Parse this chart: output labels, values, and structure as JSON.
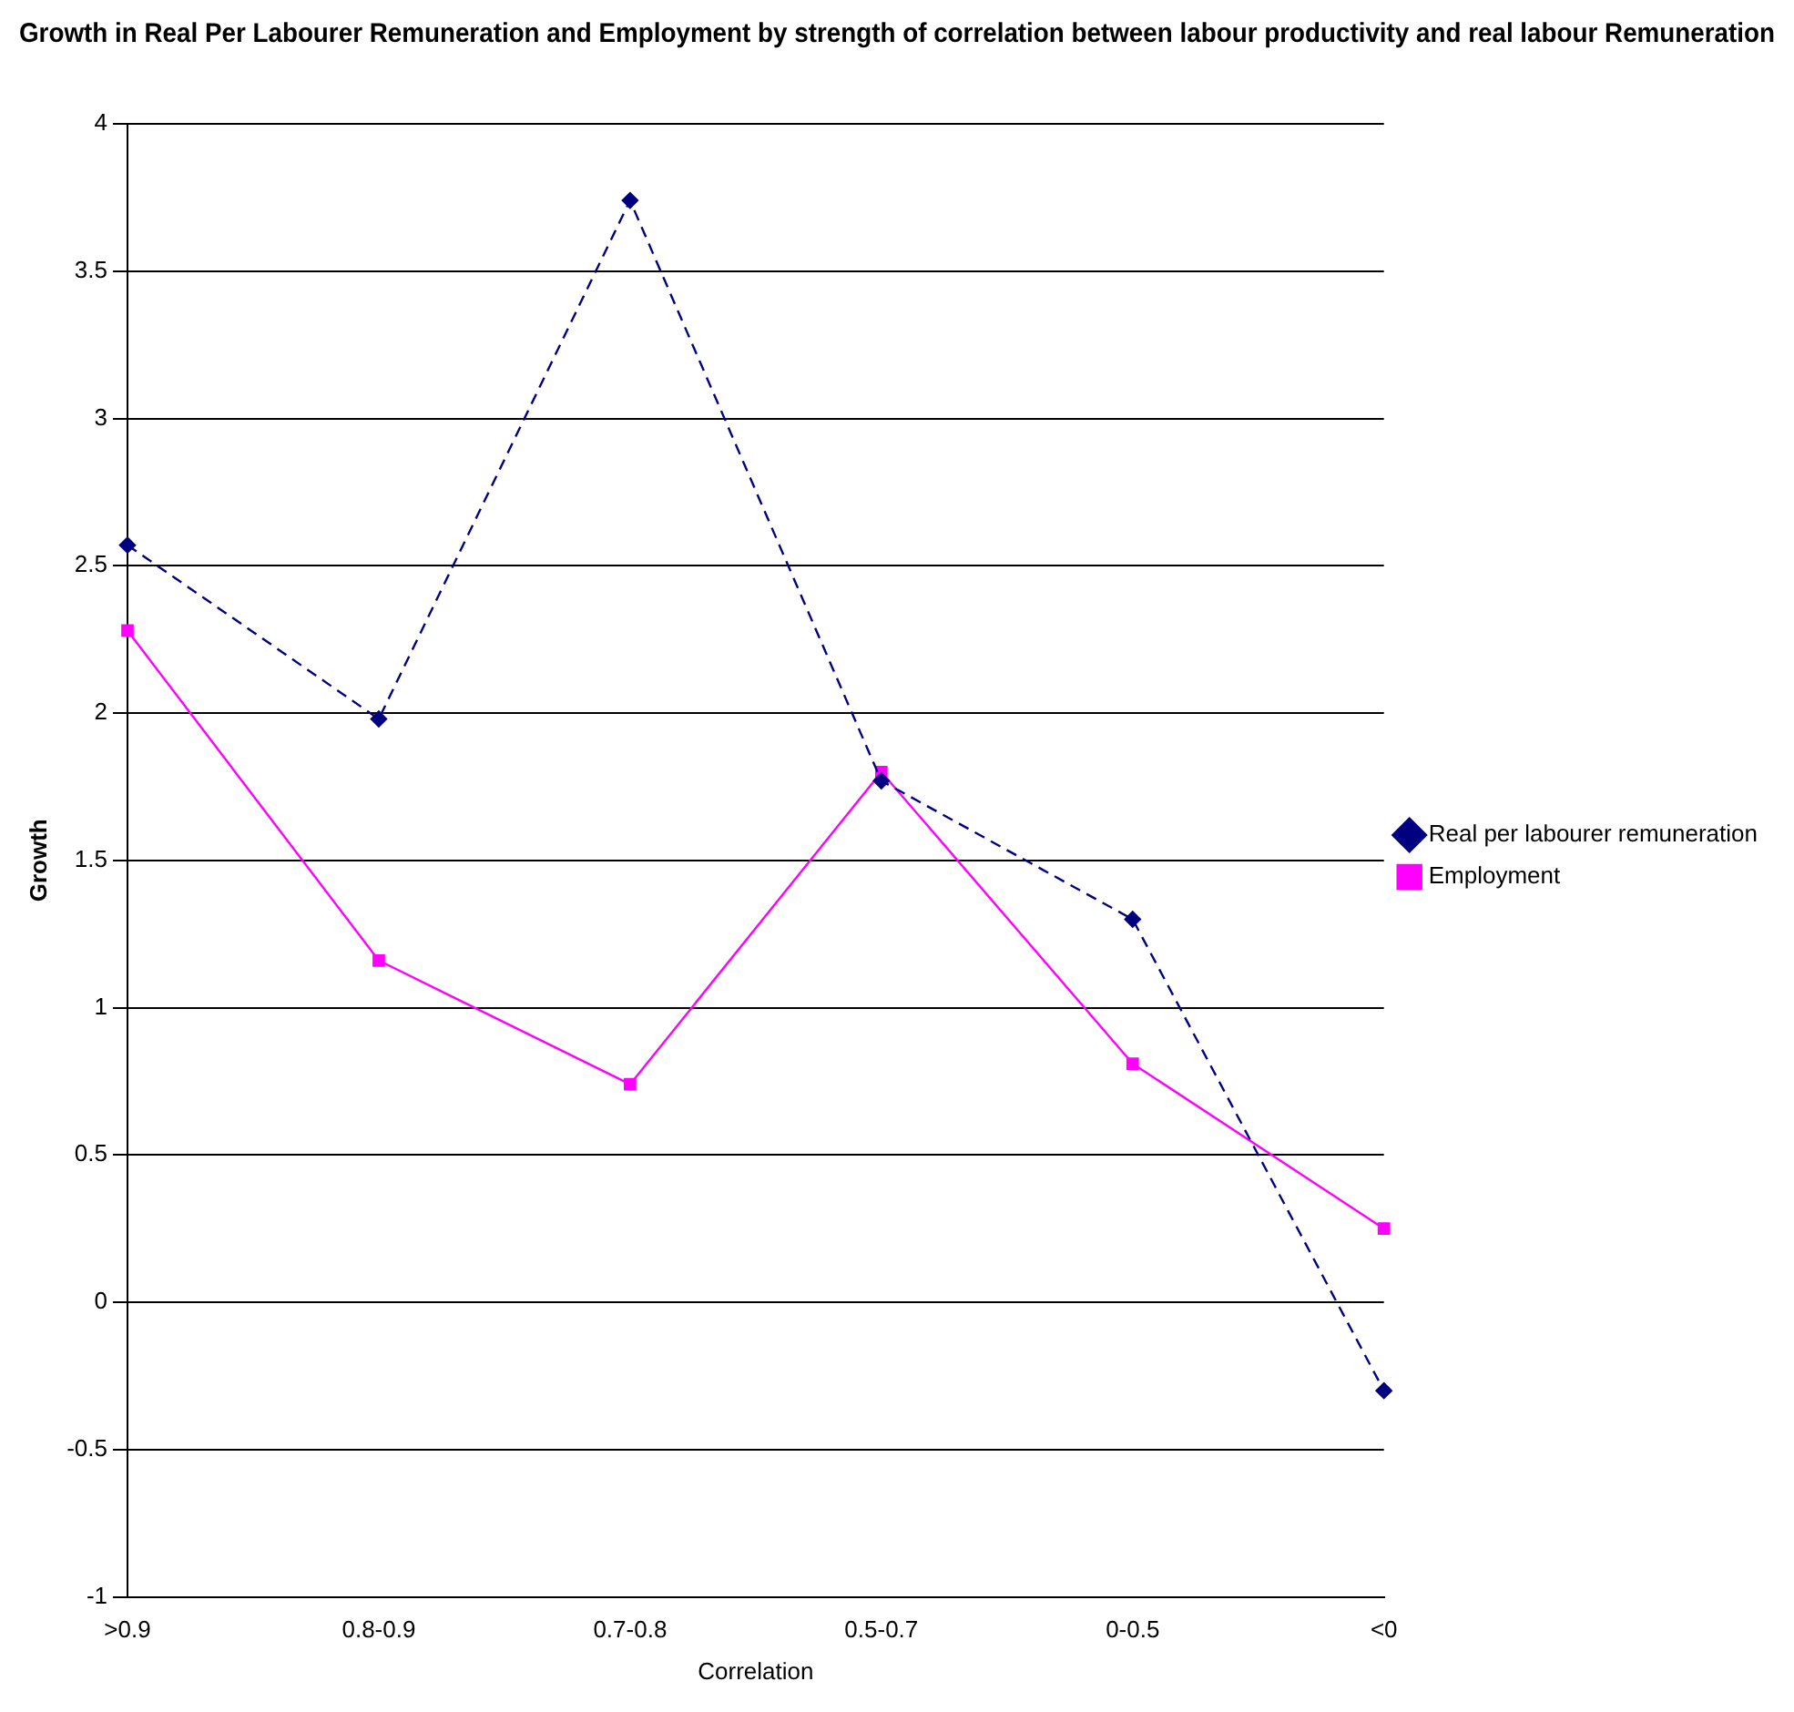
{
  "chart_data": {
    "type": "line",
    "title": "Growth in Real Per Labourer Remuneration and Employment by strength of correlation between labour productivity and real labour Remuneration",
    "xlabel": "Correlation",
    "ylabel": "Growth",
    "categories": [
      ">0.9",
      "0.8-0.9",
      "0.7-0.8",
      "0.5-0.7",
      "0-0.5",
      "<0"
    ],
    "series": [
      {
        "name": "Real per labourer remuneration",
        "color": "#000080",
        "marker": "diamond",
        "line_style": "dashed",
        "values": [
          2.57,
          1.98,
          3.74,
          1.77,
          1.3,
          -0.3
        ]
      },
      {
        "name": "Employment",
        "color": "#ff00ff",
        "marker": "square",
        "line_style": "solid",
        "values": [
          2.28,
          1.16,
          0.74,
          1.8,
          0.81,
          0.25
        ]
      }
    ],
    "ylim": [
      -1,
      4
    ],
    "yticks": [
      -1,
      -0.5,
      0,
      0.5,
      1,
      1.5,
      2,
      2.5,
      3,
      3.5,
      4
    ],
    "grid": "y",
    "legend": "right"
  }
}
